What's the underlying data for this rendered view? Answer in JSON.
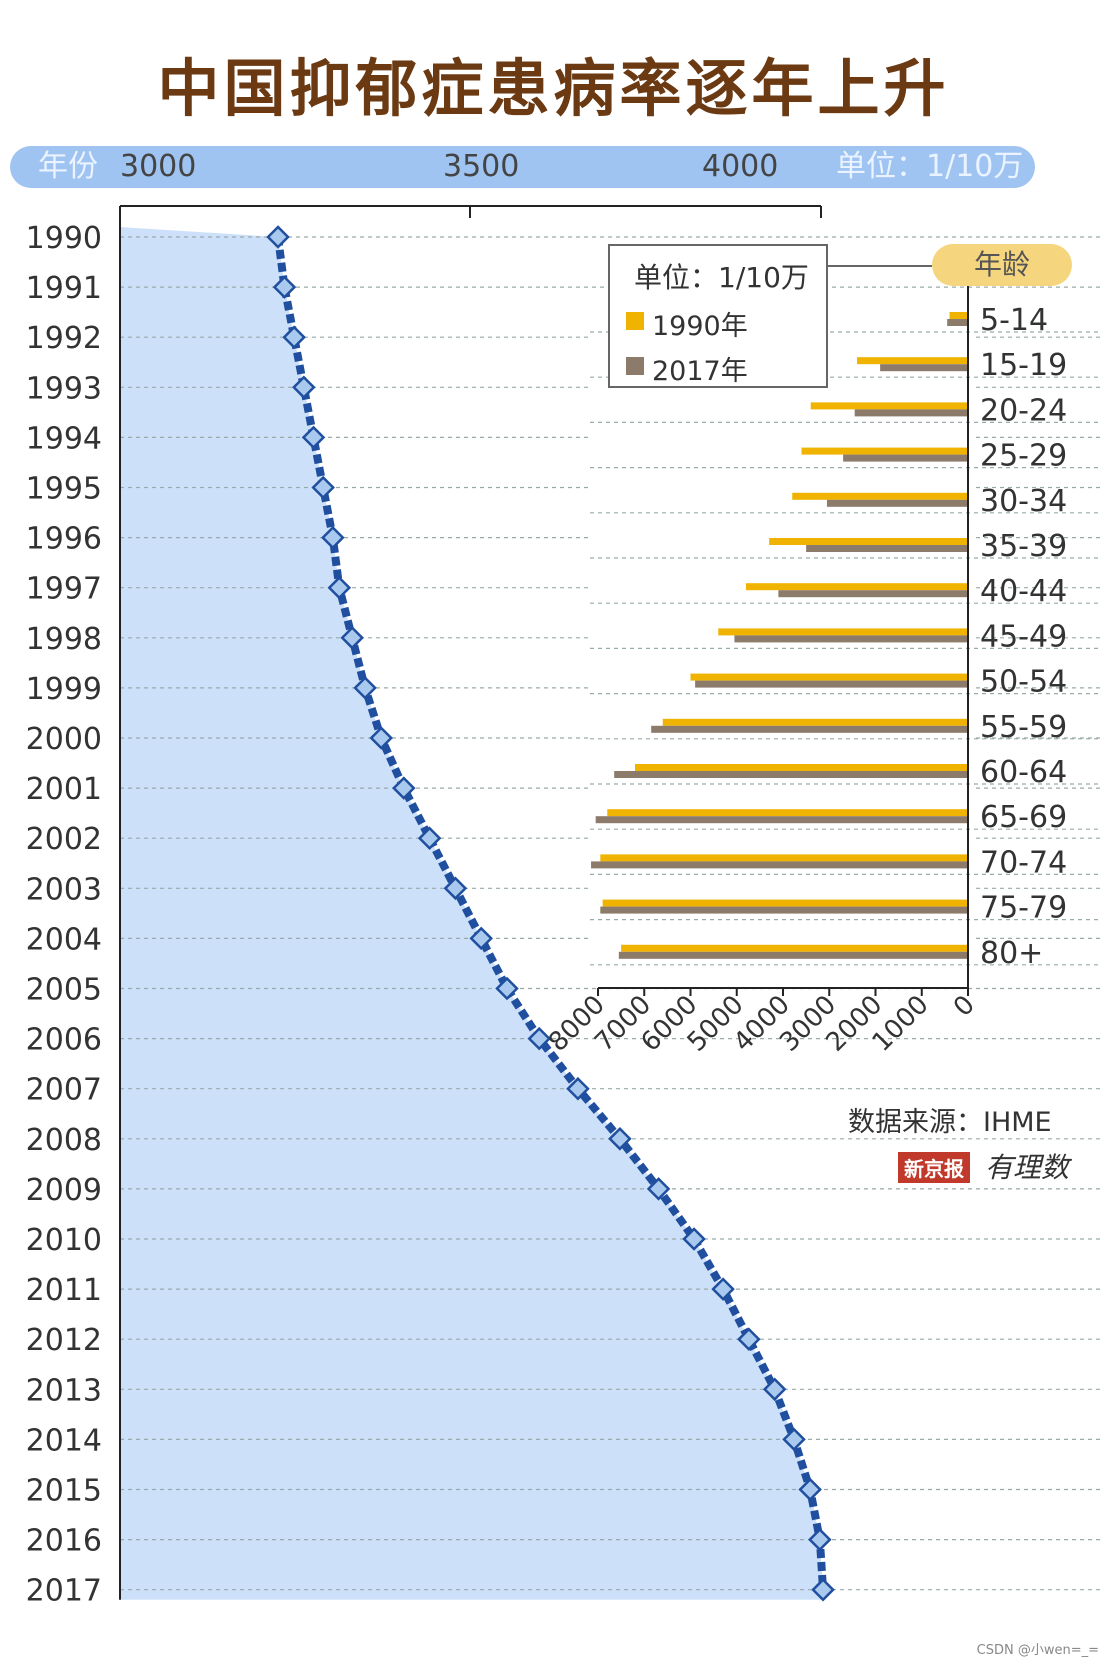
{
  "title": "中国抑郁症患病率逐年上升",
  "axis_band": {
    "year_label": "年份",
    "unit_label": "单位：1/10万",
    "ticks": [
      "3000",
      "3500",
      "4000"
    ]
  },
  "legend": {
    "title": "单位：1/10万",
    "series": [
      {
        "label": "1990年",
        "color": "#f0b400"
      },
      {
        "label": "2017年",
        "color": "#8c7b6b"
      }
    ]
  },
  "age_badge": "年龄",
  "source": "数据来源：IHME",
  "brand": {
    "red_tag": "新京报",
    "script": "有理数"
  },
  "watermark": "CSDN @小wen=_=",
  "colors": {
    "area_fill": "#cde0fa",
    "line": "#1f4f9e",
    "marker_fill": "#a9c9ee",
    "band": "#9fc4f2",
    "title": "#6b3a12"
  },
  "chart_data": [
    {
      "type": "line",
      "title": "中国抑郁症患病率逐年上升",
      "xlabel": "单位：1/10万",
      "ylabel": "年份",
      "x_axis_range": [
        3000,
        4100
      ],
      "x_ticks": [
        3000,
        3500,
        4000
      ],
      "years": [
        "1990",
        "1991",
        "1992",
        "1993",
        "1994",
        "1995",
        "1996",
        "1997",
        "1998",
        "1999",
        "2000",
        "2001",
        "2002",
        "2003",
        "2004",
        "2005",
        "2006",
        "2007",
        "2008",
        "2009",
        "2010",
        "2011",
        "2012",
        "2013",
        "2014",
        "2015",
        "2016",
        "2017"
      ],
      "values": [
        3245,
        3255,
        3270,
        3285,
        3300,
        3315,
        3330,
        3340,
        3360,
        3380,
        3405,
        3440,
        3480,
        3520,
        3560,
        3600,
        3650,
        3710,
        3775,
        3835,
        3890,
        3935,
        3975,
        4015,
        4045,
        4070,
        4085,
        4090
      ]
    },
    {
      "type": "bar",
      "orientation": "horizontal",
      "title": "",
      "unit": "单位：1/10万",
      "categories": [
        "5-14",
        "15-19",
        "20-24",
        "25-29",
        "30-34",
        "35-39",
        "40-44",
        "45-49",
        "50-54",
        "55-59",
        "60-64",
        "65-69",
        "70-74",
        "75-79",
        "80+"
      ],
      "x_axis_range": [
        0,
        8000
      ],
      "x_ticks": [
        0,
        1000,
        2000,
        3000,
        4000,
        5000,
        6000,
        7000,
        8000
      ],
      "x_direction": "right-to-left",
      "series": [
        {
          "name": "1990年",
          "values": [
            400,
            2400,
            3400,
            3600,
            3800,
            4300,
            4800,
            5400,
            6000,
            6600,
            7200,
            7800,
            7950,
            7900,
            7500
          ]
        },
        {
          "name": "2017年",
          "values": [
            450,
            1900,
            2450,
            2700,
            3050,
            3500,
            4100,
            5050,
            5900,
            6850,
            7650,
            8050,
            8150,
            7950,
            7550
          ]
        }
      ]
    }
  ]
}
